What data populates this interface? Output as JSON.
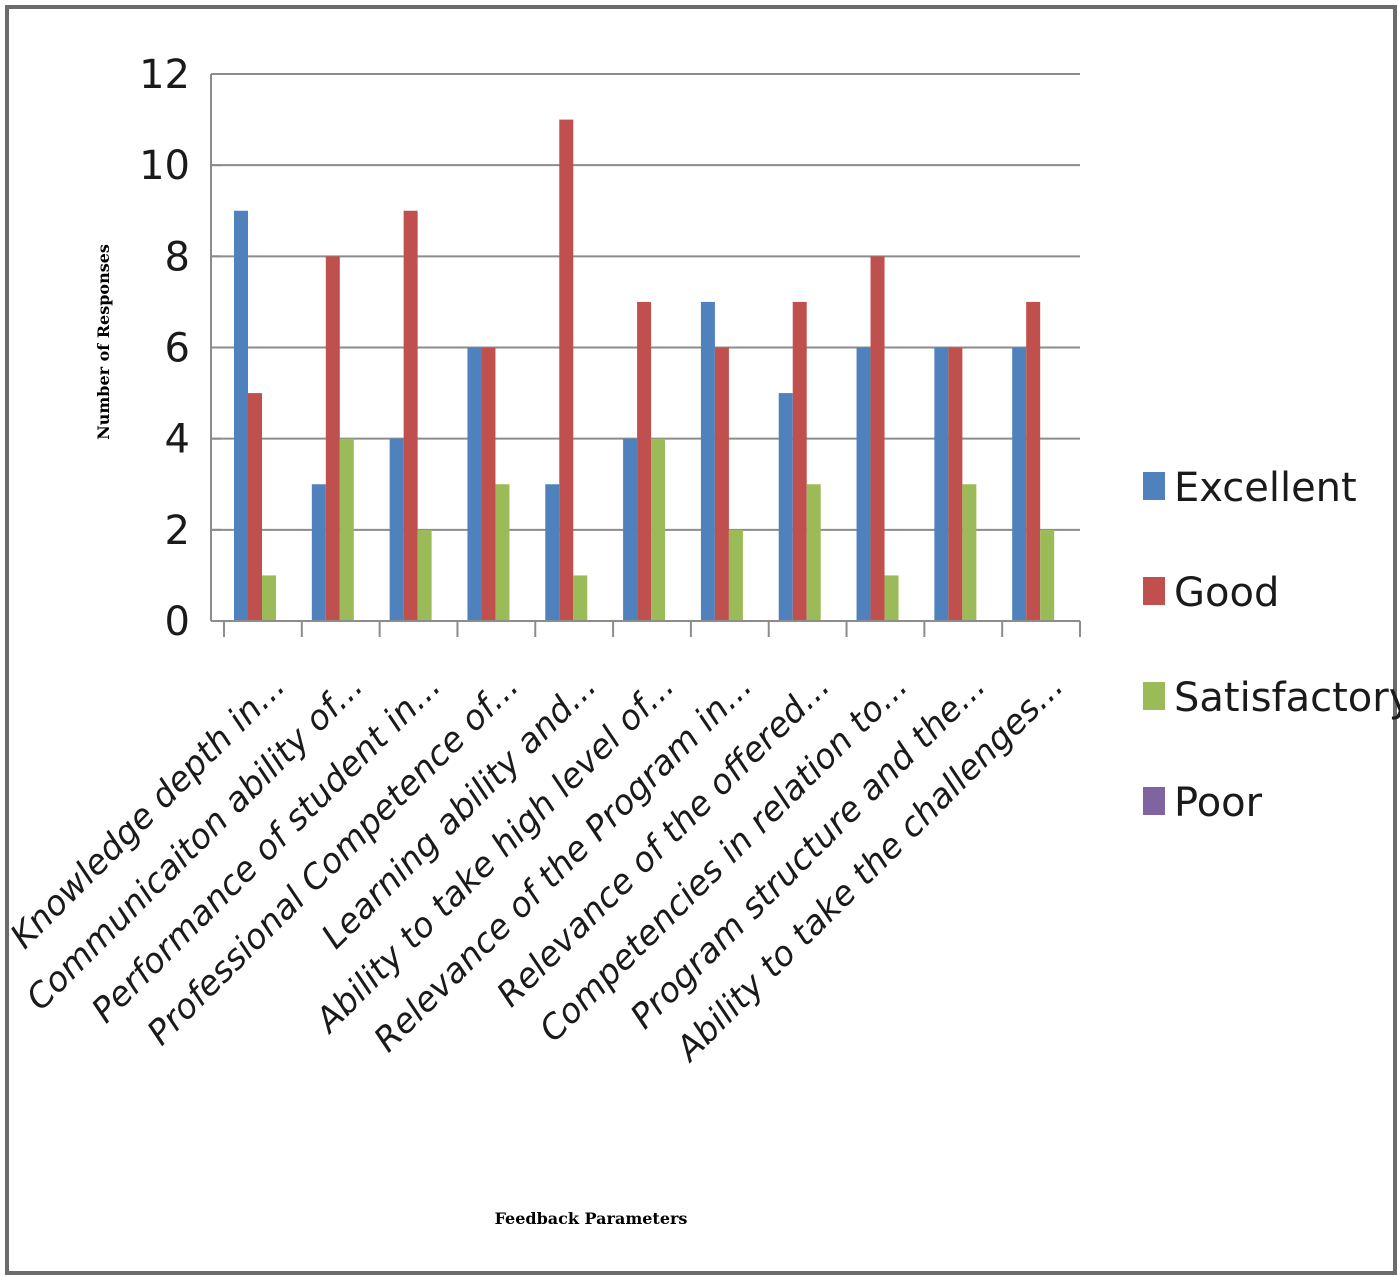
{
  "chart_data": {
    "type": "bar",
    "xlabel": "Feedback Parameters",
    "ylabel": "Number of Responses",
    "ylim": [
      0,
      12
    ],
    "yticks": [
      0,
      2,
      4,
      6,
      8,
      10,
      12
    ],
    "grid": true,
    "legend_position": "right",
    "categories": [
      "Knowledge depth in...",
      "Communicaiton ability of...",
      "Performance of student in...",
      "Professional Competence of...",
      "Learning ability and...",
      "Ability to take high level of...",
      "Relevance of the Program in...",
      "Relevance of the offered...",
      "Competencies in relation to...",
      "Program structure and the...",
      "Ability to take the challenges..."
    ],
    "series": [
      {
        "name": "Excellent",
        "color": "#4F81BD",
        "values": [
          9,
          3,
          4,
          6,
          3,
          4,
          7,
          5,
          6,
          6,
          6
        ]
      },
      {
        "name": "Good",
        "color": "#C0504D",
        "values": [
          5,
          8,
          9,
          6,
          11,
          7,
          6,
          7,
          8,
          6,
          7
        ]
      },
      {
        "name": "Satisfactory",
        "color": "#9BBB59",
        "values": [
          1,
          4,
          2,
          3,
          1,
          4,
          2,
          3,
          1,
          3,
          2
        ]
      },
      {
        "name": "Poor",
        "color": "#8064A2",
        "values": [
          0,
          0,
          0,
          0,
          0,
          0,
          0,
          0,
          0,
          0,
          0
        ]
      }
    ]
  }
}
